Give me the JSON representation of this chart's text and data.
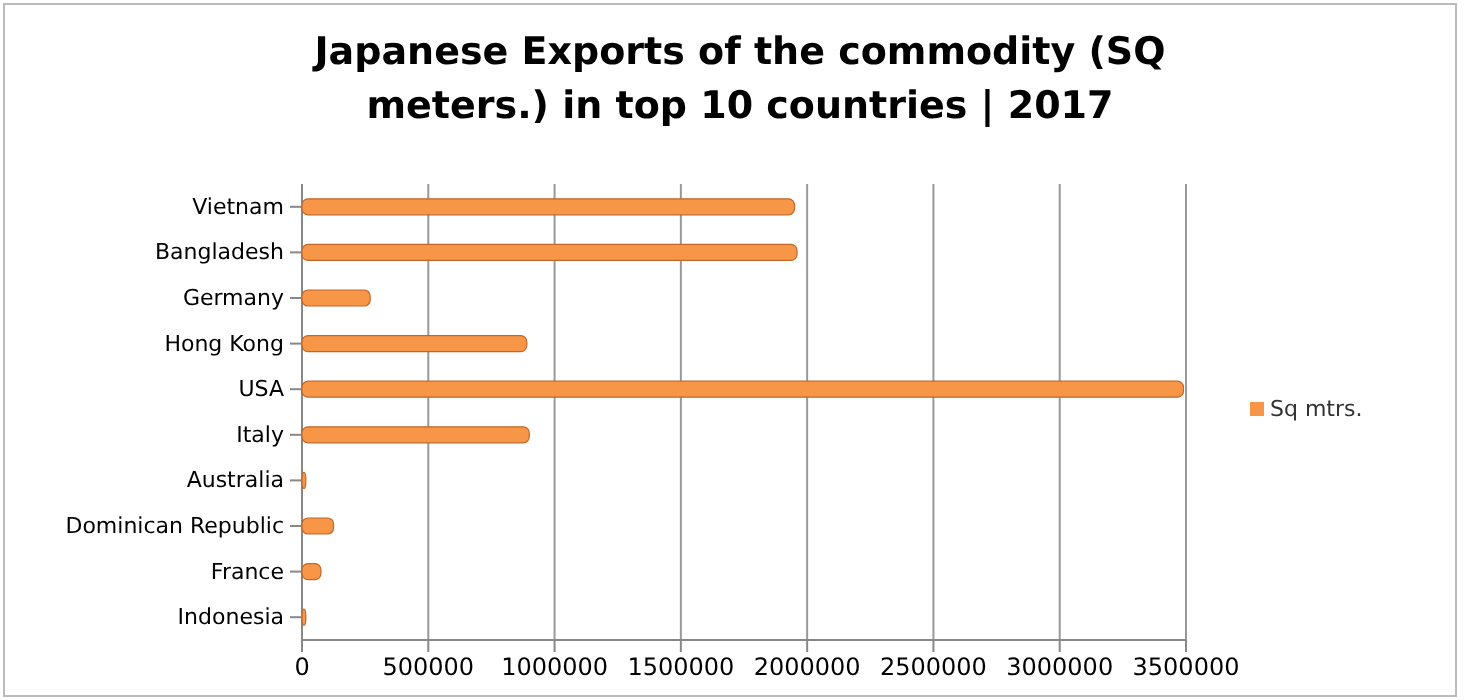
{
  "chart_data": {
    "type": "bar",
    "orientation": "horizontal",
    "title": "Japanese Exports of the commodity (SQ meters.) in top 10 countries | 2017",
    "categories": [
      "Vietnam",
      "Bangladesh",
      "Germany",
      "Hong Kong",
      "USA",
      "Italy",
      "Australia",
      "Dominican Republic",
      "France",
      "Indonesia"
    ],
    "series": [
      {
        "name": "Sq mtrs.",
        "color": "#f79646",
        "values": [
          1950000,
          1960000,
          270000,
          890000,
          3490000,
          900000,
          15000,
          125000,
          75000,
          15000
        ]
      }
    ],
    "xlim": [
      0,
      3500000
    ],
    "xticks": [
      0,
      500000,
      1000000,
      1500000,
      2000000,
      2500000,
      3000000,
      3500000
    ],
    "grid": "x",
    "legend": "right"
  }
}
